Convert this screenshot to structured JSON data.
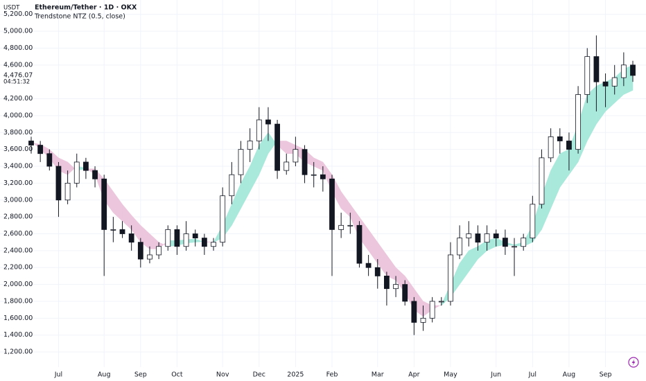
{
  "chart_data": {
    "type": "candlestick",
    "currency": "USDT",
    "title": "Ethereum/Tether · 1D · OKX",
    "indicator_title": "Trendstone NTZ (0.5, close)",
    "categories": [
      null,
      null,
      null,
      "Jul",
      null,
      null,
      null,
      null,
      "Aug",
      null,
      null,
      null,
      "Sep",
      null,
      null,
      null,
      "Oct",
      null,
      null,
      null,
      null,
      "Nov",
      null,
      null,
      null,
      "Dec",
      null,
      null,
      null,
      "2025",
      null,
      null,
      null,
      "Feb",
      null,
      null,
      null,
      null,
      "Mar",
      null,
      null,
      null,
      "Apr",
      null,
      null,
      null,
      "May",
      null,
      null,
      null,
      null,
      "Jun",
      null,
      null,
      null,
      "Jul",
      null,
      null,
      null,
      "Aug",
      null,
      null,
      null,
      "Sep",
      null,
      null,
      null
    ],
    "open": [
      3700,
      3650,
      3550,
      3400,
      3000,
      3200,
      3450,
      3350,
      3250,
      2650,
      2650,
      2600,
      2500,
      2300,
      2350,
      2450,
      2650,
      2450,
      2600,
      2550,
      2450,
      2500,
      3050,
      3300,
      3600,
      3700,
      3950,
      3900,
      3350,
      3450,
      3600,
      3300,
      3300,
      3250,
      2650,
      2700,
      2700,
      2250,
      2200,
      2100,
      1950,
      2000,
      1800,
      1550,
      1600,
      1800,
      1800,
      2350,
      2550,
      2600,
      2500,
      2600,
      2550,
      2450,
      2450,
      2550,
      2950,
      3500,
      3750,
      3700,
      3600,
      4250,
      4700,
      4400,
      4350,
      4450,
      4600
    ],
    "high": [
      3750,
      3700,
      3600,
      3450,
      3350,
      3550,
      3500,
      3400,
      3300,
      2800,
      2750,
      2700,
      2550,
      2450,
      2500,
      2700,
      2700,
      2750,
      2650,
      2600,
      2550,
      3150,
      3450,
      3700,
      3850,
      4100,
      4100,
      3950,
      3550,
      3750,
      3650,
      3450,
      3400,
      3300,
      2850,
      2850,
      2750,
      2350,
      2300,
      2150,
      2100,
      2050,
      1850,
      1750,
      1850,
      1850,
      2500,
      2700,
      2750,
      2700,
      2700,
      2650,
      2650,
      2550,
      2600,
      3050,
      3600,
      3850,
      3850,
      3800,
      4350,
      4800,
      4950,
      4500,
      4600,
      4750,
      4650
    ],
    "low": [
      3550,
      3450,
      3350,
      2800,
      2950,
      3150,
      3250,
      3150,
      2100,
      2500,
      2550,
      2400,
      2200,
      2250,
      2300,
      2400,
      2350,
      2400,
      2450,
      2350,
      2400,
      2450,
      2950,
      3200,
      3450,
      3600,
      3700,
      3250,
      3300,
      3400,
      3200,
      3150,
      3100,
      2100,
      2550,
      2600,
      2200,
      2100,
      1950,
      1750,
      1850,
      1750,
      1400,
      1450,
      1550,
      1750,
      1750,
      2300,
      2450,
      2400,
      2400,
      2450,
      2350,
      2100,
      2400,
      2500,
      2900,
      3450,
      3550,
      3350,
      3550,
      4150,
      4050,
      4100,
      4250,
      4350,
      4400
    ],
    "close": [
      3650,
      3550,
      3400,
      3000,
      3200,
      3450,
      3350,
      3250,
      2650,
      2650,
      2600,
      2500,
      2300,
      2350,
      2450,
      2650,
      2450,
      2600,
      2550,
      2450,
      2500,
      3050,
      3300,
      3600,
      3700,
      3950,
      3900,
      3350,
      3450,
      3600,
      3300,
      3300,
      3250,
      2650,
      2700,
      2700,
      2250,
      2200,
      2100,
      1950,
      2000,
      1800,
      1550,
      1600,
      1800,
      1800,
      2350,
      2550,
      2600,
      2500,
      2600,
      2550,
      2450,
      2450,
      2550,
      2950,
      3500,
      3750,
      3700,
      3600,
      4250,
      4700,
      4400,
      4350,
      4450,
      4600,
      4476.07
    ],
    "candle_colors": {
      "up": "#ffffff",
      "down": "#131722",
      "wick": "#131722"
    },
    "indicator": {
      "fast": [
        3700,
        3600,
        3500,
        3350,
        3300,
        3400,
        3380,
        3300,
        3000,
        2850,
        2750,
        2650,
        2500,
        2420,
        2420,
        2520,
        2520,
        2530,
        2540,
        2500,
        2500,
        2700,
        2950,
        3200,
        3400,
        3650,
        3800,
        3650,
        3550,
        3550,
        3450,
        3400,
        3350,
        3100,
        2900,
        2800,
        2550,
        2400,
        2250,
        2100,
        2050,
        1900,
        1700,
        1620,
        1700,
        1760,
        2000,
        2250,
        2400,
        2450,
        2520,
        2550,
        2500,
        2470,
        2500,
        2700,
        3050,
        3350,
        3550,
        3600,
        3900,
        4250,
        4350,
        4400,
        4450,
        4550,
        4600
      ],
      "slow": [
        3680,
        3660,
        3600,
        3500,
        3450,
        3350,
        3370,
        3370,
        3250,
        3100,
        2950,
        2820,
        2700,
        2600,
        2500,
        2450,
        2460,
        2490,
        2500,
        2510,
        2500,
        2550,
        2700,
        2900,
        3100,
        3300,
        3550,
        3700,
        3700,
        3650,
        3600,
        3500,
        3450,
        3300,
        3100,
        2950,
        2800,
        2650,
        2500,
        2350,
        2200,
        2100,
        1950,
        1800,
        1750,
        1750,
        1850,
        2000,
        2150,
        2300,
        2400,
        2450,
        2470,
        2460,
        2450,
        2500,
        2650,
        2900,
        3150,
        3300,
        3450,
        3700,
        3900,
        4050,
        4150,
        4250,
        4300
      ],
      "bull_color": "#a9e9db",
      "bear_color": "#ecc6dc"
    },
    "ylim": [
      1020,
      5370
    ],
    "yticks": [
      {
        "value": 1200,
        "label": "1,200.00"
      },
      {
        "value": 1400,
        "label": "1,400.00"
      },
      {
        "value": 1600,
        "label": "1,600.00"
      },
      {
        "value": 1800,
        "label": "1,800.00"
      },
      {
        "value": 2000,
        "label": "2,000.00"
      },
      {
        "value": 2200,
        "label": "2,200.00"
      },
      {
        "value": 2400,
        "label": "2,400.00"
      },
      {
        "value": 2600,
        "label": "2,600.00"
      },
      {
        "value": 2800,
        "label": "2,800.00"
      },
      {
        "value": 3000,
        "label": "3,000.00"
      },
      {
        "value": 3200,
        "label": "3,200.00"
      },
      {
        "value": 3400,
        "label": "3,400.00"
      },
      {
        "value": 3600,
        "label": "3,600.00"
      },
      {
        "value": 3800,
        "label": "3,800.00"
      },
      {
        "value": 4000,
        "label": "4,000.00"
      },
      {
        "value": 4200,
        "label": "4,200.00"
      },
      {
        "value": 4600,
        "label": "4,600.00"
      },
      {
        "value": 4800,
        "label": "4,800.00"
      },
      {
        "value": 5000,
        "label": "5,000.00"
      },
      {
        "value": 5200,
        "label": "5,200.00"
      }
    ],
    "grid": true,
    "last_price": {
      "value": 4476.07,
      "label": "4,476.07"
    },
    "countdown": "04:51:32"
  }
}
